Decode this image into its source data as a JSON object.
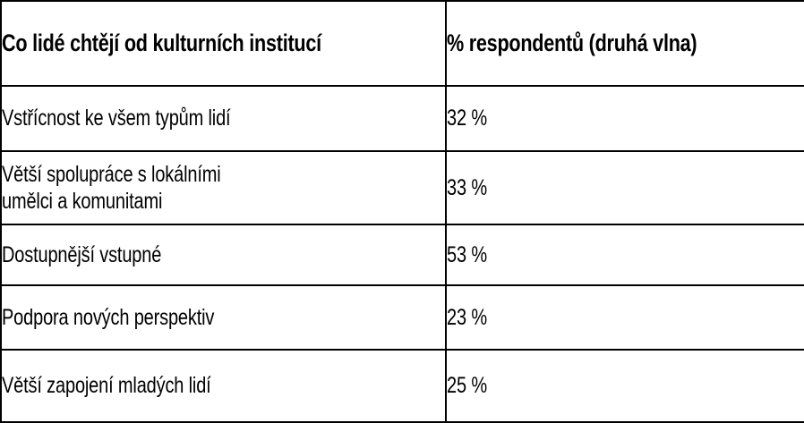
{
  "chart_data": {
    "type": "table",
    "title": "Co lidé chtějí od kulturních institucí",
    "columns": [
      "Co lidé chtějí od kulturních institucí",
      "% respondentů (druhá vlna)"
    ],
    "categories": [
      "Vstřícnost ke všem typům lidí",
      "Větší spolupráce s lokálními umělci a komunitami",
      "Dostupnější vstupné",
      "Podpora nových perspektiv",
      "Větší zapojení mladých lidí"
    ],
    "values": [
      32,
      33,
      53,
      23,
      25
    ],
    "unit": "%",
    "layout": {
      "grid": "full-borders",
      "header_bold": true,
      "text_align": "left"
    }
  },
  "table": {
    "header": {
      "question": "Co lidé chtějí od kulturních institucí",
      "respondents": "% respondentů (druhá vlna)"
    },
    "rows": [
      {
        "label": "Vstřícnost ke všem typům lidí",
        "value": "32 %"
      },
      {
        "label": "Větší spolupráce s lokálními\numělci a komunitami",
        "value": "33 %"
      },
      {
        "label": "Dostupnější vstupné",
        "value": "53 %"
      },
      {
        "label": "Podpora nových perspektiv",
        "value": "23 %"
      },
      {
        "label": "Větší zapojení mladých lidí",
        "value": "25 %"
      }
    ],
    "colors": {
      "border": "#000000",
      "background": "#ffffff",
      "text": "#000000"
    }
  }
}
